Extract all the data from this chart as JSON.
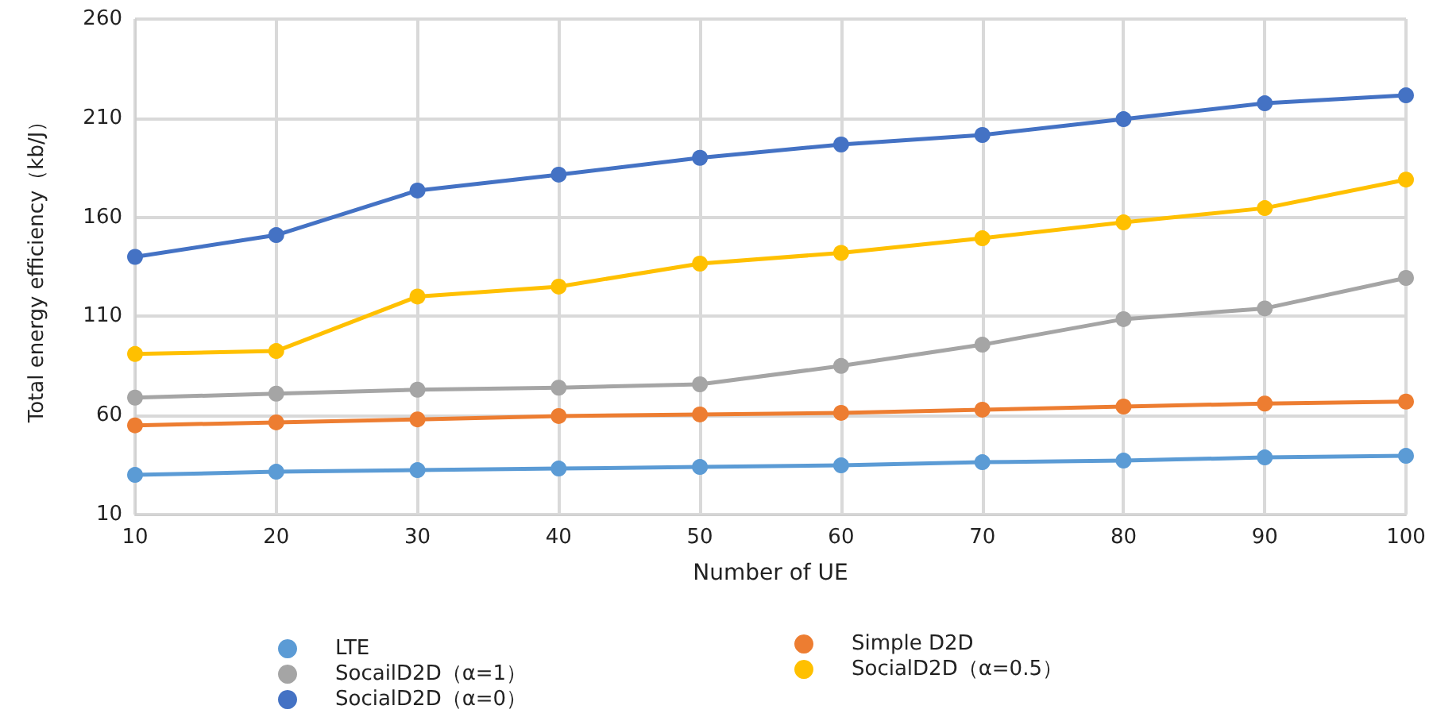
{
  "chart_data": {
    "type": "line",
    "xlabel": "Number of UE",
    "ylabel": "Total energy efficiency（kb/J）",
    "x": [
      10,
      20,
      30,
      40,
      50,
      60,
      70,
      80,
      90,
      100
    ],
    "xlim": [
      10,
      100
    ],
    "xticks": [
      10,
      20,
      30,
      40,
      50,
      60,
      70,
      80,
      90,
      100
    ],
    "ylim": [
      10,
      260
    ],
    "yticks": [
      10,
      60,
      110,
      160,
      210,
      260
    ],
    "grid": true,
    "legend": "bottom",
    "marker": "circle",
    "line_style": "solid",
    "series": [
      {
        "name": "LTE",
        "color": "#5b9bd5",
        "values": [
          30,
          31.6,
          32.4,
          33.2,
          34,
          34.8,
          36.4,
          37.2,
          38.8,
          39.6
        ]
      },
      {
        "name": "Simple D2D",
        "color": "#ed7d31",
        "values": [
          55,
          56.5,
          58,
          59.7,
          60.5,
          61.3,
          62.9,
          64.5,
          66,
          67
        ]
      },
      {
        "name": "SocailD2D（α=1）",
        "color": "#a5a5a5",
        "values": [
          69,
          71,
          73,
          74,
          75.7,
          85,
          95.7,
          108.6,
          114,
          129.4
        ]
      },
      {
        "name": "SocialD2D（α=0.5）",
        "color": "#ffc000",
        "values": [
          91,
          92.5,
          120,
          125,
          136.6,
          142,
          149.4,
          157.4,
          164.6,
          179
        ]
      },
      {
        "name": "SocialD2D（α=0）",
        "color": "#4472c4",
        "values": [
          140,
          151,
          173.5,
          181.5,
          190,
          196.7,
          201.5,
          209.5,
          217.5,
          221.5
        ]
      }
    ]
  }
}
